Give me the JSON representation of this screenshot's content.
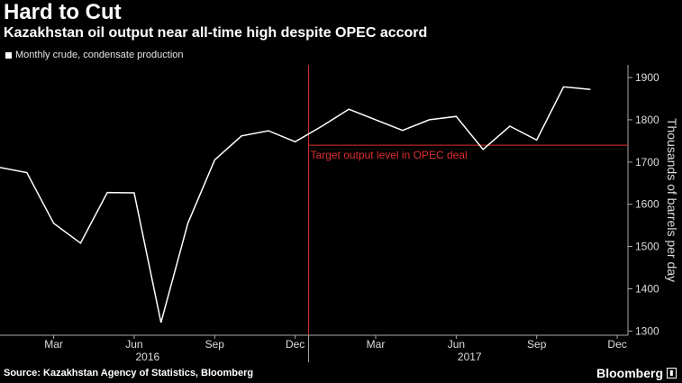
{
  "header": {
    "title": "Hard to Cut",
    "subtitle": "Kazakhstan oil output near all-time high despite OPEC accord"
  },
  "legend": {
    "label": "Monthly crude, condensate production"
  },
  "footer": {
    "source": "Source: Kazakhstan Agency of Statistics, Bloomberg",
    "brand": "Bloomberg"
  },
  "colors": {
    "line": "#ffffff",
    "reference": "#e03030",
    "background": "#000000"
  },
  "chart_data": {
    "type": "line",
    "title": "Hard to Cut",
    "ylabel": "Thousands of barrels per day",
    "ylim": [
      1290,
      1930
    ],
    "yticks": [
      1300,
      1400,
      1500,
      1600,
      1700,
      1800,
      1900
    ],
    "xticks": [
      "Mar",
      "Jun",
      "Sep",
      "Dec",
      "Mar",
      "Jun",
      "Sep",
      "Dec"
    ],
    "xtick_months": [
      3,
      6,
      9,
      12,
      15,
      18,
      21,
      24
    ],
    "year_labels": [
      {
        "label": "2016",
        "month": 6.5
      },
      {
        "label": "2017",
        "month": 18.5
      }
    ],
    "series": [
      {
        "name": "Monthly crude, condensate production",
        "x": [
          "2016-01",
          "2016-02",
          "2016-03",
          "2016-04",
          "2016-05",
          "2016-06",
          "2016-07",
          "2016-08",
          "2016-09",
          "2016-10",
          "2016-11",
          "2016-12",
          "2017-01",
          "2017-02",
          "2017-03",
          "2017-04",
          "2017-05",
          "2017-06",
          "2017-07",
          "2017-08",
          "2017-09",
          "2017-10",
          "2017-11",
          "2017-12"
        ],
        "values": [
          1687,
          1675,
          1555,
          1508,
          1628,
          1627,
          1320,
          1555,
          1705,
          1762,
          1774,
          1748,
          1785,
          1825,
          1800,
          1775,
          1800,
          1808,
          1730,
          1785,
          1752,
          1878,
          1872,
          null
        ]
      }
    ],
    "reference_line": {
      "value": 1740,
      "label": "Target output level in OPEC deal",
      "start": "2017-01"
    },
    "grid": false
  }
}
